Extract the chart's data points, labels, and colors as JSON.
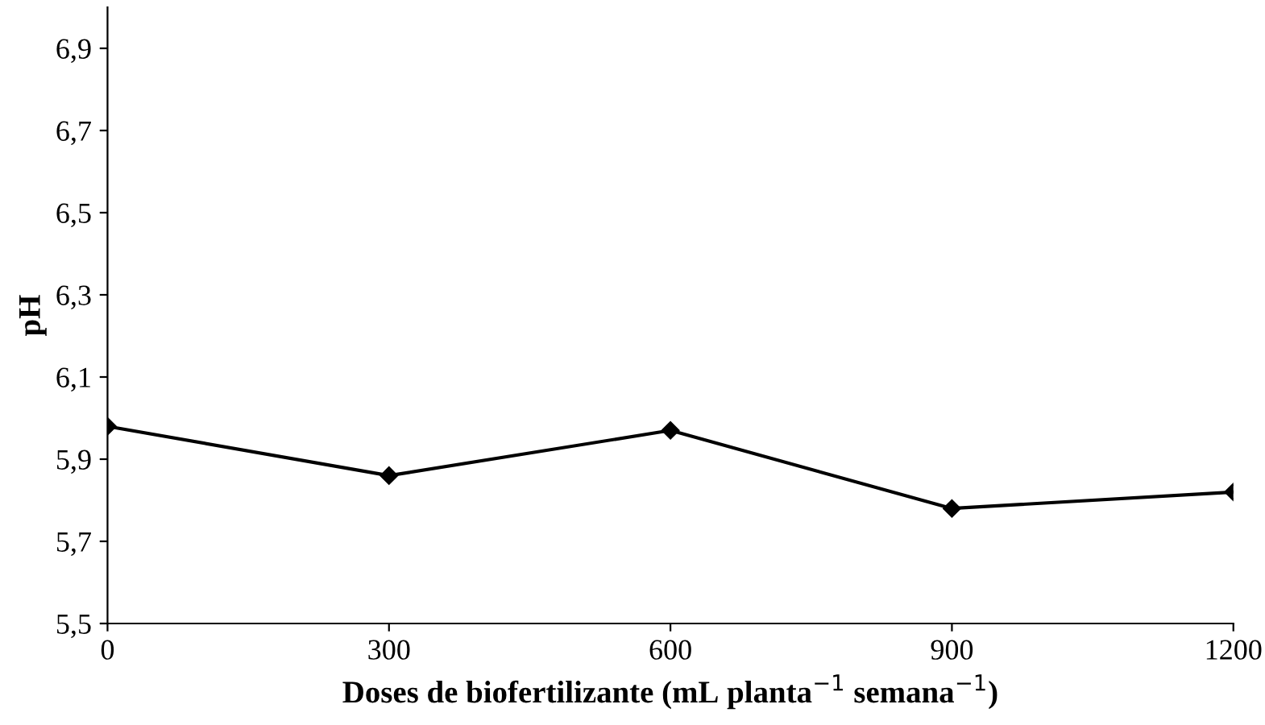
{
  "chart_data": {
    "type": "line",
    "xlabel": "Doses de biofertilizante (mL planta$^{−1}$ semana$^{−1}$)",
    "ylabel": "pH",
    "x": [
      0,
      300,
      600,
      900,
      1200
    ],
    "series": [
      {
        "color": "#000000",
        "values": [
          5.98,
          5.86,
          5.97,
          5.78,
          5.82
        ]
      }
    ],
    "xlim": [
      0,
      1200
    ],
    "xticks": [
      0,
      300,
      600,
      900,
      1200
    ],
    "ylim": [
      5.5,
      7.0
    ],
    "yticks": [
      {
        "value": 5.5,
        "label": "5,5"
      },
      {
        "value": 5.7,
        "label": "5,7"
      },
      {
        "value": 5.9,
        "label": "5,9"
      },
      {
        "value": 6.1,
        "label": "6,1"
      },
      {
        "value": 6.3,
        "label": "6,3"
      },
      {
        "value": 6.5,
        "label": "6,5"
      },
      {
        "value": 6.7,
        "label": "6,7"
      },
      {
        "value": 6.9,
        "label": "6,9"
      }
    ],
    "marker": "diamond",
    "line_style": "solid",
    "grid": false,
    "legend": false
  }
}
